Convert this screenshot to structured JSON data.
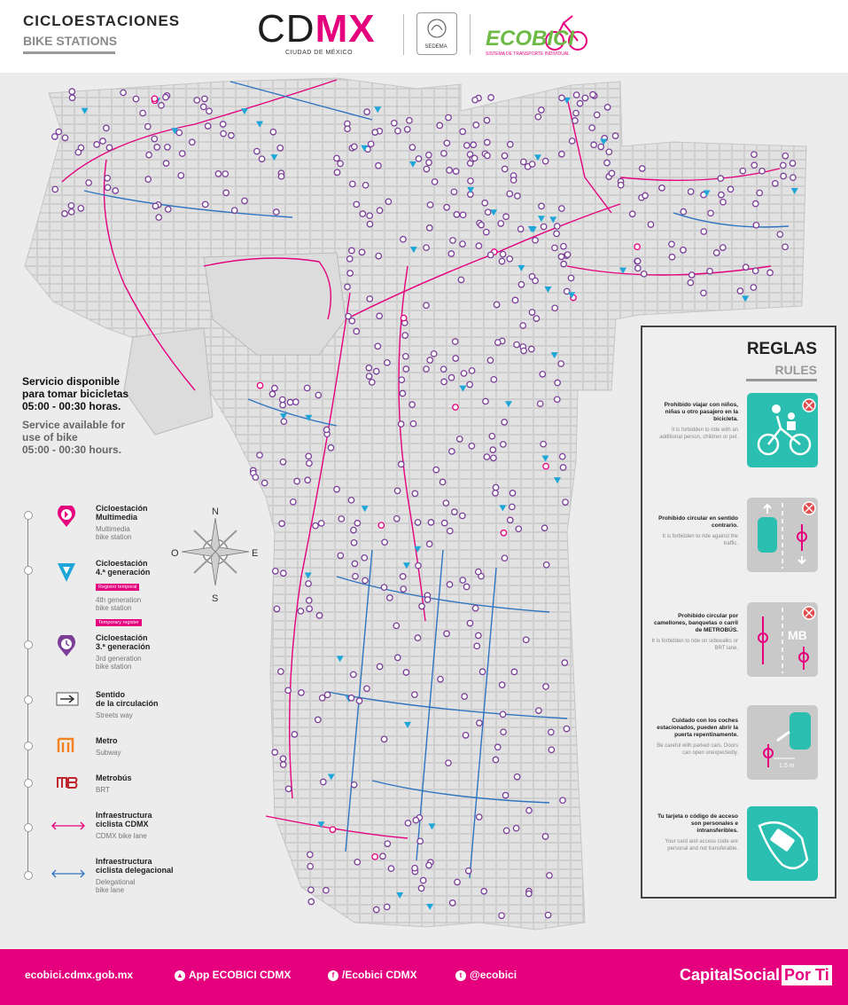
{
  "header": {
    "title_es": "CICLOESTACIONES",
    "title_en": "BIKE STATIONS",
    "cdmx_cd": "CD",
    "cdmx_mx": "MX",
    "cdmx_sub": "CIUDAD DE MÉXICO",
    "sedema": "SEDEMA",
    "ecobici": "ECOBICI",
    "ecobici_sub": "SISTEMA DE TRANSPORTE INDIVIDUAL"
  },
  "service": {
    "es": [
      "Servicio disponible",
      "para tomar bicicletas",
      "05:00 - 00:30 horas."
    ],
    "en": [
      "Service available for",
      "use of bike",
      "05:00 - 00:30 hours."
    ]
  },
  "compass": {
    "n": "N",
    "s": "S",
    "e": "E",
    "w": "O"
  },
  "legend": [
    {
      "es": [
        "Cicloestación",
        "Multimedia"
      ],
      "en": [
        "Multimedia",
        "bike station"
      ],
      "icon": "multimedia-station-icon"
    },
    {
      "es": [
        "Cicloestación",
        "4.ª generación"
      ],
      "badge_es": "Registro temporal",
      "en": [
        "4th generation",
        "bike station"
      ],
      "badge_en": "Temporary register",
      "icon": "4th-gen-station-icon"
    },
    {
      "es": [
        "Cicloestación",
        "3.ª generación"
      ],
      "en": [
        "3rd generation",
        "bike station"
      ],
      "icon": "3rd-gen-station-icon"
    },
    {
      "es": [
        "Sentido",
        "de la circulación"
      ],
      "en": [
        "Streets way"
      ],
      "icon": "street-direction-icon"
    },
    {
      "es": [
        "Metro"
      ],
      "en": [
        "Subway"
      ],
      "icon": "metro-icon"
    },
    {
      "es": [
        "Metrobús"
      ],
      "en": [
        "BRT"
      ],
      "icon": "metrobus-icon"
    },
    {
      "es": [
        "Infraestructura",
        "ciclista CDMX"
      ],
      "en": [
        "CDMX bike lane"
      ],
      "icon": "cdmx-bike-lane-icon"
    },
    {
      "es": [
        "Infraestructura",
        "ciclista delegacional"
      ],
      "en": [
        "Delegational",
        "bike lane"
      ],
      "icon": "delegational-bike-lane-icon"
    }
  ],
  "rules": {
    "title_es": "REGLAS",
    "title_en": "RULES",
    "items": [
      {
        "es": "Prohibido viajar con niños, niñas u otro pasajero en la bicicleta.",
        "en": "It is forbidden to ride with an additional person, children or pet.",
        "style": "teal"
      },
      {
        "es": "Prohibido circular en sentido contrario.",
        "en": "It is forbidden to ride against the traffic.",
        "style": "gray"
      },
      {
        "es": "Prohibido circular por camellones, banquetas o carril de METROBÚS.",
        "en": "It is forbidden to ride on sidewalks or BRT lane.",
        "style": "gray",
        "mb": "MB"
      },
      {
        "es": "Cuidado con los coches estacionados, pueden abrir la puerta repentinamente.",
        "en": "Be careful with parked cars. Doors can open unexpectedly.",
        "style": "gray",
        "dist": "1.5 m"
      },
      {
        "es": "Tu tarjeta o código de acceso son personales e intransferibles.",
        "en": "Your card and access code are personal and not transferable.",
        "style": "teal"
      }
    ]
  },
  "footer": {
    "web": "ecobici.cdmx.gob.mx",
    "app": "App ECOBICI CDMX",
    "facebook": "/Ecobici CDMX",
    "twitter": "@ecobici",
    "capital": "CapitalSocial",
    "porti": "Por Ti"
  },
  "colors": {
    "magenta": "#e5007e",
    "teal": "#2bbfb2",
    "blue_lane": "#2f74c0",
    "purple_station": "#7b3f98",
    "cyan_station": "#1ea6d8"
  }
}
